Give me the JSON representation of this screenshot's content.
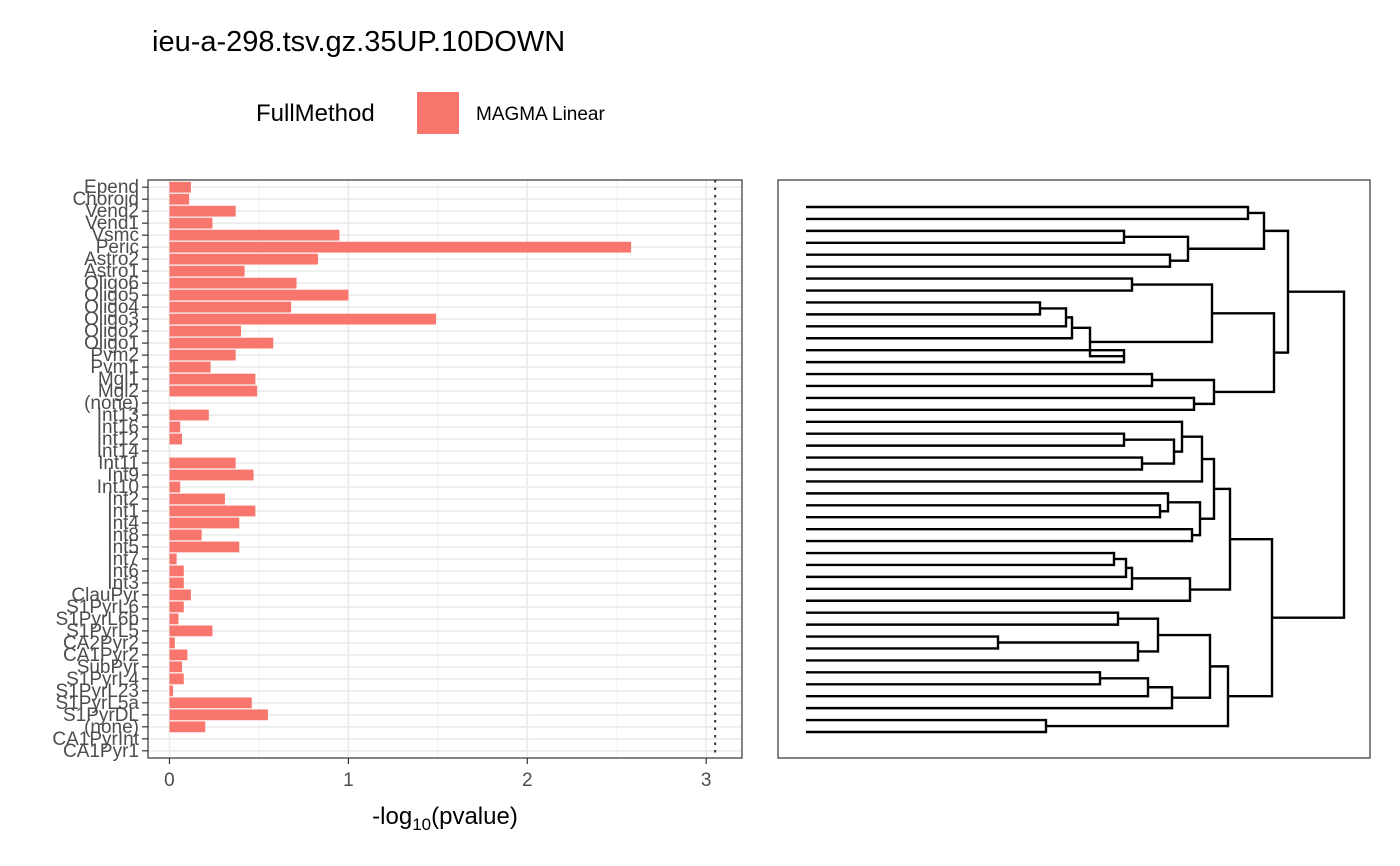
{
  "title": "ieu-a-298.tsv.gz.35UP.10DOWN",
  "legend": {
    "title": "FullMethod",
    "items": [
      {
        "label": "MAGMA Linear",
        "color": "#F8766D"
      }
    ]
  },
  "chart_data": [
    {
      "type": "bar",
      "orientation": "horizontal",
      "series": [
        {
          "name": "MAGMA Linear",
          "color": "#F8766D"
        }
      ],
      "categories": [
        "Epend",
        "Choroid",
        "Vend2",
        "Vend1",
        "Vsmc",
        "Peric",
        "Astro2",
        "Astro1",
        "Oligo6",
        "Oligo5",
        "Oligo4",
        "Oligo3",
        "Oligo2",
        "Oligo1",
        "Pvm2",
        "Pvm1",
        "Mgl1",
        "Mgl2",
        "(none)",
        "Int13",
        "Int16",
        "Int12",
        "Int14",
        "Int11",
        "Int9",
        "Int10",
        "Int2",
        "Int1",
        "Int4",
        "Int8",
        "Int5",
        "Int7",
        "Int6",
        "Int3",
        "ClauPyr",
        "S1PyrL6",
        "S1PyrL6b",
        "S1PyrL5",
        "CA2Pyr2",
        "CA1Pyr2",
        "SubPyr",
        "S1PyrL4",
        "S1PyrL23",
        "S1PyrL5a",
        "S1PyrDL",
        "(none)",
        "CA1PyrInt",
        "CA1Pyr1"
      ],
      "values": [
        0.12,
        0.11,
        0.37,
        0.24,
        0.95,
        2.58,
        0.83,
        0.42,
        0.71,
        1.0,
        0.68,
        1.49,
        0.4,
        0.58,
        0.37,
        0.23,
        0.48,
        0.49,
        0.0,
        0.22,
        0.06,
        0.07,
        0.0,
        0.37,
        0.47,
        0.06,
        0.31,
        0.48,
        0.39,
        0.18,
        0.39,
        0.04,
        0.08,
        0.08,
        0.12,
        0.08,
        0.05,
        0.24,
        0.03,
        0.1,
        0.07,
        0.08,
        0.02,
        0.46,
        0.55,
        0.2,
        0.0,
        0.0
      ],
      "xlabel": "-log10(pvalue)",
      "ylabel": "",
      "xlim": [
        -0.12,
        3.2
      ],
      "xticks": [
        "0",
        "1",
        "2",
        "3"
      ],
      "reference_line": {
        "x": 3.05,
        "style": "dotted"
      },
      "grid": true
    },
    {
      "type": "dendrogram",
      "orientation": "horizontal",
      "leaf_count": 45
    }
  ]
}
